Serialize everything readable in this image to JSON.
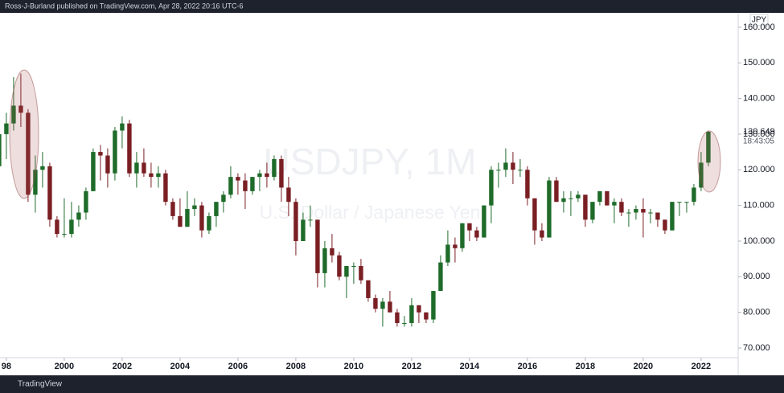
{
  "header": "Ross-J-Burland published on TradingView.com, Apr 28, 2022 20:16 UTC-6",
  "footer": "TradingView",
  "chart_data": {
    "type": "candlestick",
    "title": "USDJPY, 1M",
    "subtitle": "U.S. Dollar / Japanese Yen",
    "currency": "JPY",
    "last_price": 130.649,
    "countdown": "18:43:05",
    "up_color": "#1f6b2a",
    "down_color": "#7a1f24",
    "x": [
      1997.75,
      1998,
      1998.25,
      1998.5,
      1998.75,
      1999,
      1999.25,
      1999.5,
      1999.75,
      2000,
      2000.25,
      2000.5,
      2000.75,
      2001,
      2001.25,
      2001.5,
      2001.75,
      2002,
      2002.25,
      2002.5,
      2002.75,
      2003,
      2003.25,
      2003.5,
      2003.75,
      2004,
      2004.25,
      2004.5,
      2004.75,
      2005,
      2005.25,
      2005.5,
      2005.75,
      2006,
      2006.25,
      2006.5,
      2006.75,
      2007,
      2007.25,
      2007.5,
      2007.75,
      2008,
      2008.25,
      2008.5,
      2008.75,
      2009,
      2009.25,
      2009.5,
      2009.75,
      2010,
      2010.25,
      2010.5,
      2010.75,
      2011,
      2011.25,
      2011.5,
      2011.75,
      2012,
      2012.25,
      2012.5,
      2012.75,
      2013,
      2013.25,
      2013.5,
      2013.75,
      2014,
      2014.25,
      2014.5,
      2014.75,
      2015,
      2015.25,
      2015.5,
      2015.75,
      2016,
      2016.25,
      2016.5,
      2016.75,
      2017,
      2017.25,
      2017.5,
      2017.75,
      2018,
      2018.25,
      2018.5,
      2018.75,
      2019,
      2019.25,
      2019.5,
      2019.75,
      2020,
      2020.25,
      2020.5,
      2020.75,
      2021,
      2021.25,
      2021.5,
      2021.75,
      2022,
      2022.25
    ],
    "open": [
      121,
      130,
      133,
      138,
      136,
      113,
      120,
      121,
      106,
      102,
      102,
      106,
      108,
      114,
      125,
      124,
      119,
      131,
      133,
      119,
      122,
      119,
      118,
      119,
      111,
      107,
      104,
      109,
      110,
      103,
      107,
      111,
      113,
      118,
      117,
      114,
      118,
      119,
      118,
      123,
      115,
      111,
      100,
      106,
      106,
      91,
      98,
      96,
      90,
      93,
      93,
      89,
      84,
      81,
      83,
      80,
      77,
      77,
      82,
      80,
      78,
      86,
      94,
      99,
      98,
      105,
      103,
      101,
      110,
      120,
      120,
      122,
      120,
      120,
      112,
      103,
      101,
      117,
      111,
      112,
      112,
      113,
      106,
      111,
      114,
      110,
      111,
      108,
      108,
      109,
      108,
      108,
      106,
      103,
      111,
      111,
      111,
      115,
      122
    ],
    "high": [
      131,
      136,
      146,
      147,
      137,
      124,
      125,
      122,
      107,
      112,
      111,
      110,
      115,
      126,
      127,
      126,
      132,
      135,
      134,
      125,
      126,
      122,
      121,
      120,
      112,
      112,
      114,
      112,
      111,
      108,
      111,
      114,
      121,
      119,
      119,
      118,
      120,
      122,
      124,
      124,
      118,
      112,
      108,
      110,
      106,
      100,
      102,
      97,
      93,
      94,
      95,
      89,
      85,
      84,
      86,
      81,
      79,
      84,
      82,
      80,
      86,
      96,
      103,
      101,
      105,
      105,
      104,
      110,
      121,
      122,
      126,
      125,
      123,
      121,
      112,
      105,
      118,
      118,
      114,
      114,
      114,
      113,
      111,
      114,
      114,
      112,
      112,
      109,
      110,
      112,
      109,
      108,
      106,
      111,
      111,
      111,
      116,
      125,
      131
    ],
    "low": [
      119,
      123,
      131,
      132,
      111,
      108,
      115,
      104,
      101,
      101,
      101,
      104,
      106,
      114,
      117,
      115,
      117,
      126,
      118,
      115,
      118,
      115,
      115,
      110,
      106,
      104,
      104,
      107,
      101,
      102,
      104,
      108,
      112,
      113,
      109,
      113,
      114,
      115,
      117,
      111,
      107,
      96,
      100,
      104,
      87,
      87,
      94,
      89,
      84,
      88,
      88,
      83,
      80,
      76,
      80,
      76,
      76,
      76,
      77,
      77,
      77,
      86,
      93,
      94,
      97,
      100,
      100,
      101,
      105,
      115,
      118,
      116,
      118,
      110,
      99,
      100,
      101,
      111,
      108,
      107,
      111,
      104,
      105,
      110,
      110,
      105,
      107,
      104,
      106,
      101,
      105,
      104,
      102,
      103,
      107,
      108,
      110,
      114,
      121
    ],
    "close": [
      130,
      133,
      138,
      136,
      113,
      120,
      121,
      106,
      102,
      102,
      106,
      108,
      114,
      125,
      124,
      119,
      131,
      133,
      119,
      122,
      119,
      118,
      119,
      111,
      107,
      104,
      109,
      110,
      103,
      107,
      111,
      113,
      118,
      117,
      114,
      118,
      119,
      118,
      123,
      115,
      111,
      100,
      106,
      106,
      91,
      98,
      96,
      90,
      93,
      93,
      89,
      84,
      81,
      83,
      80,
      77,
      77,
      82,
      80,
      78,
      86,
      94,
      99,
      98,
      105,
      103,
      101,
      110,
      120,
      120,
      122,
      120,
      120,
      112,
      103,
      101,
      117,
      111,
      112,
      112,
      113,
      106,
      111,
      114,
      110,
      111,
      108,
      108,
      109,
      108,
      108,
      106,
      103,
      111,
      111,
      111,
      115,
      122,
      130.649
    ],
    "xlim": [
      1997.78,
      2023.28
    ],
    "xticks": [
      {
        "value": 1998,
        "label": "98"
      },
      2000,
      2002,
      2004,
      2006,
      2008,
      2010,
      2012,
      2014,
      2016,
      2018,
      2020,
      2022
    ],
    "ylim": [
      67.3,
      163.8
    ],
    "yticks": [
      {
        "value": 70,
        "label": "70.000"
      },
      {
        "value": 80,
        "label": "80.000"
      },
      {
        "value": 90,
        "label": "90.000"
      },
      {
        "value": 100,
        "label": "100.000"
      },
      {
        "value": 110,
        "label": "110.000"
      },
      {
        "value": 120,
        "label": "120.000"
      },
      {
        "value": 130,
        "label": "130.000"
      },
      {
        "value": 140,
        "label": "140.000"
      },
      {
        "value": 150,
        "label": "150.000"
      },
      {
        "value": 160,
        "label": "160.000"
      }
    ],
    "grid": false
  }
}
